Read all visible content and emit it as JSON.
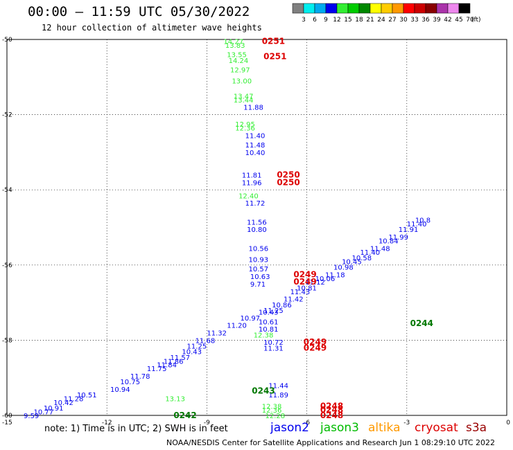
{
  "header": {
    "title": "00:00 – 11:59 UTC 05/30/2022",
    "subtitle": "12 hour collection of altimeter wave heights",
    "note": "note: 1) Time is in UTC; 2) SWH is in feet",
    "credit": "NOAA/NESDIS Center for Satellite Applications and Research   Jun  1 08:29:10 UTC 2022"
  },
  "satellites": [
    {
      "name": "jason2",
      "color": "#0000ee"
    },
    {
      "name": "jason3",
      "color": "#00bb00"
    },
    {
      "name": "altika",
      "color": "#ff9900"
    },
    {
      "name": "cryosat",
      "color": "#dd0000"
    },
    {
      "name": "s3a",
      "color": "#990000"
    }
  ],
  "colorbar": {
    "unit": "(ft)",
    "labels": [
      "3",
      "6",
      "9",
      "12",
      "15",
      "18",
      "21",
      "24",
      "27",
      "30",
      "33",
      "36",
      "39",
      "42",
      "45",
      "70"
    ],
    "colors": [
      "#808080",
      "#00eeee",
      "#00aaee",
      "#0000ee",
      "#33ee33",
      "#00cc00",
      "#008800",
      "#ffff00",
      "#ffcc00",
      "#ff9900",
      "#ff0000",
      "#cc0000",
      "#880000",
      "#aa33aa",
      "#ee88ee",
      "#000000"
    ]
  },
  "chart_data": {
    "type": "scatter",
    "xlim": [
      -15,
      0
    ],
    "ylim": [
      -60,
      -50
    ],
    "x_ticks": [
      -15,
      -12,
      -9,
      -6,
      -3,
      0
    ],
    "y_ticks": [
      -50,
      -52,
      -54,
      -56,
      -58,
      -60
    ],
    "grid": true,
    "series": [
      {
        "name": "jason2",
        "color": "#0000ee",
        "points": [
          {
            "x": -7.9,
            "y": -51.8,
            "label": "11.88"
          },
          {
            "x": -7.85,
            "y": -52.55,
            "label": "11.40"
          },
          {
            "x": -7.85,
            "y": -52.8,
            "label": "11.48"
          },
          {
            "x": -7.85,
            "y": -53.0,
            "label": "10.40"
          },
          {
            "x": -7.95,
            "y": -53.6,
            "label": "11.81"
          },
          {
            "x": -7.95,
            "y": -53.8,
            "label": "11.96"
          },
          {
            "x": -7.85,
            "y": -54.35,
            "label": "11.72"
          },
          {
            "x": -7.8,
            "y": -54.85,
            "label": "11.56"
          },
          {
            "x": -7.8,
            "y": -55.05,
            "label": "10.80"
          },
          {
            "x": -7.75,
            "y": -55.55,
            "label": "10.56"
          },
          {
            "x": -7.75,
            "y": -55.85,
            "label": "10.93"
          },
          {
            "x": -7.75,
            "y": -56.1,
            "label": "10.57"
          },
          {
            "x": -7.7,
            "y": -56.3,
            "label": "10.63"
          },
          {
            "x": -7.7,
            "y": -56.5,
            "label": "9.71"
          },
          {
            "x": -7.45,
            "y": -57.25,
            "label": "10.43"
          },
          {
            "x": -7.45,
            "y": -57.5,
            "label": "10.61"
          },
          {
            "x": -7.45,
            "y": -57.7,
            "label": "10.81"
          },
          {
            "x": -7.3,
            "y": -58.05,
            "label": "10.72"
          },
          {
            "x": -7.3,
            "y": -58.2,
            "label": "11.31"
          },
          {
            "x": -7.15,
            "y": -59.2,
            "label": "11.44"
          },
          {
            "x": -7.15,
            "y": -59.45,
            "label": "11.89"
          },
          {
            "x": -14.5,
            "y": -60.0,
            "label": "9.59"
          },
          {
            "x": -14.2,
            "y": -59.9,
            "label": "10.77"
          },
          {
            "x": -13.9,
            "y": -59.8,
            "label": "10.91"
          },
          {
            "x": -13.6,
            "y": -59.65,
            "label": "10.42"
          },
          {
            "x": -13.3,
            "y": -59.55,
            "label": "11.28"
          },
          {
            "x": -12.9,
            "y": -59.45,
            "label": "10.51"
          },
          {
            "x": -11.9,
            "y": -59.3,
            "label": "10.94"
          },
          {
            "x": -11.6,
            "y": -59.1,
            "label": "10.75"
          },
          {
            "x": -11.3,
            "y": -58.95,
            "label": "11.78"
          },
          {
            "x": -10.8,
            "y": -58.75,
            "label": "11.75"
          },
          {
            "x": -10.5,
            "y": -58.65,
            "label": "11.84"
          },
          {
            "x": -10.3,
            "y": -58.55,
            "label": "11.86"
          },
          {
            "x": -10.1,
            "y": -58.45,
            "label": "11.57"
          },
          {
            "x": -9.75,
            "y": -58.3,
            "label": "10.43"
          },
          {
            "x": -9.6,
            "y": -58.15,
            "label": "11.25"
          },
          {
            "x": -9.35,
            "y": -58.0,
            "label": "11.68"
          },
          {
            "x": -9.0,
            "y": -57.8,
            "label": "11.32"
          },
          {
            "x": -8.4,
            "y": -57.6,
            "label": "11.20"
          },
          {
            "x": -8.0,
            "y": -57.4,
            "label": "10.97"
          },
          {
            "x": -7.3,
            "y": -57.2,
            "label": "11.25"
          },
          {
            "x": -7.05,
            "y": -57.05,
            "label": "10.86"
          },
          {
            "x": -6.7,
            "y": -56.9,
            "label": "11.42"
          },
          {
            "x": -6.5,
            "y": -56.7,
            "label": "11.43"
          },
          {
            "x": -6.3,
            "y": -56.6,
            "label": "10.81"
          },
          {
            "x": -6.05,
            "y": -56.45,
            "label": "11.12"
          },
          {
            "x": -5.75,
            "y": -56.35,
            "label": "10.06"
          },
          {
            "x": -5.45,
            "y": -56.25,
            "label": "11.18"
          },
          {
            "x": -5.2,
            "y": -56.05,
            "label": "10.98"
          },
          {
            "x": -4.95,
            "y": -55.9,
            "label": "10.45"
          },
          {
            "x": -4.65,
            "y": -55.8,
            "label": "10.58"
          },
          {
            "x": -4.4,
            "y": -55.65,
            "label": "11.40"
          },
          {
            "x": -4.1,
            "y": -55.55,
            "label": "11.48"
          },
          {
            "x": -3.85,
            "y": -55.35,
            "label": "10.84"
          },
          {
            "x": -3.55,
            "y": -55.25,
            "label": "11.99"
          },
          {
            "x": -3.25,
            "y": -55.05,
            "label": "11.91"
          },
          {
            "x": -3.0,
            "y": -54.9,
            "label": "11.40"
          },
          {
            "x": -2.75,
            "y": -54.8,
            "label": "10.8"
          }
        ]
      },
      {
        "name": "jason3",
        "color": "#33ee33",
        "points": [
          {
            "x": -8.5,
            "y": -50.05,
            "label": "14.27"
          },
          {
            "x": -8.45,
            "y": -50.15,
            "label": "13.83"
          },
          {
            "x": -8.4,
            "y": -50.4,
            "label": "13.55"
          },
          {
            "x": -8.35,
            "y": -50.55,
            "label": "14.24"
          },
          {
            "x": -8.3,
            "y": -50.8,
            "label": "12.97"
          },
          {
            "x": -8.25,
            "y": -51.1,
            "label": "13.00"
          },
          {
            "x": -8.2,
            "y": -51.5,
            "label": "13.47"
          },
          {
            "x": -8.2,
            "y": -51.6,
            "label": "13.44"
          },
          {
            "x": -8.15,
            "y": -52.25,
            "label": "12.95"
          },
          {
            "x": -8.15,
            "y": -52.35,
            "label": "12.36"
          },
          {
            "x": -8.05,
            "y": -54.15,
            "label": "12.40"
          },
          {
            "x": -10.25,
            "y": -59.55,
            "label": "13.13"
          },
          {
            "x": -7.6,
            "y": -57.85,
            "label": "12.38"
          },
          {
            "x": -7.35,
            "y": -59.75,
            "label": "12.38"
          },
          {
            "x": -7.35,
            "y": -59.85,
            "label": "12.36"
          },
          {
            "x": -7.25,
            "y": -60.0,
            "label": "12.28"
          }
        ]
      },
      {
        "name": "cryosat",
        "color": "#dd0000",
        "points": [
          {
            "x": -7.35,
            "y": -50.05,
            "label": "0251"
          },
          {
            "x": -7.3,
            "y": -50.45,
            "label": "0251"
          },
          {
            "x": -6.9,
            "y": -53.6,
            "label": "0250"
          },
          {
            "x": -6.9,
            "y": -53.8,
            "label": "0250"
          },
          {
            "x": -6.4,
            "y": -56.25,
            "label": "0249"
          },
          {
            "x": -6.4,
            "y": -56.45,
            "label": "0249"
          },
          {
            "x": -6.1,
            "y": -58.05,
            "label": "0249"
          },
          {
            "x": -6.1,
            "y": -58.2,
            "label": "0249"
          },
          {
            "x": -5.6,
            "y": -59.75,
            "label": "0248"
          },
          {
            "x": -5.6,
            "y": -59.85,
            "label": "0248"
          },
          {
            "x": -5.6,
            "y": -60.0,
            "label": "0248"
          }
        ]
      },
      {
        "name": "jason3",
        "color": "#007700",
        "points": [
          {
            "x": -2.9,
            "y": -57.55,
            "label": "0244"
          },
          {
            "x": -7.65,
            "y": -59.35,
            "label": "0243"
          },
          {
            "x": -10.0,
            "y": -60.0,
            "label": "0242"
          }
        ]
      }
    ]
  }
}
